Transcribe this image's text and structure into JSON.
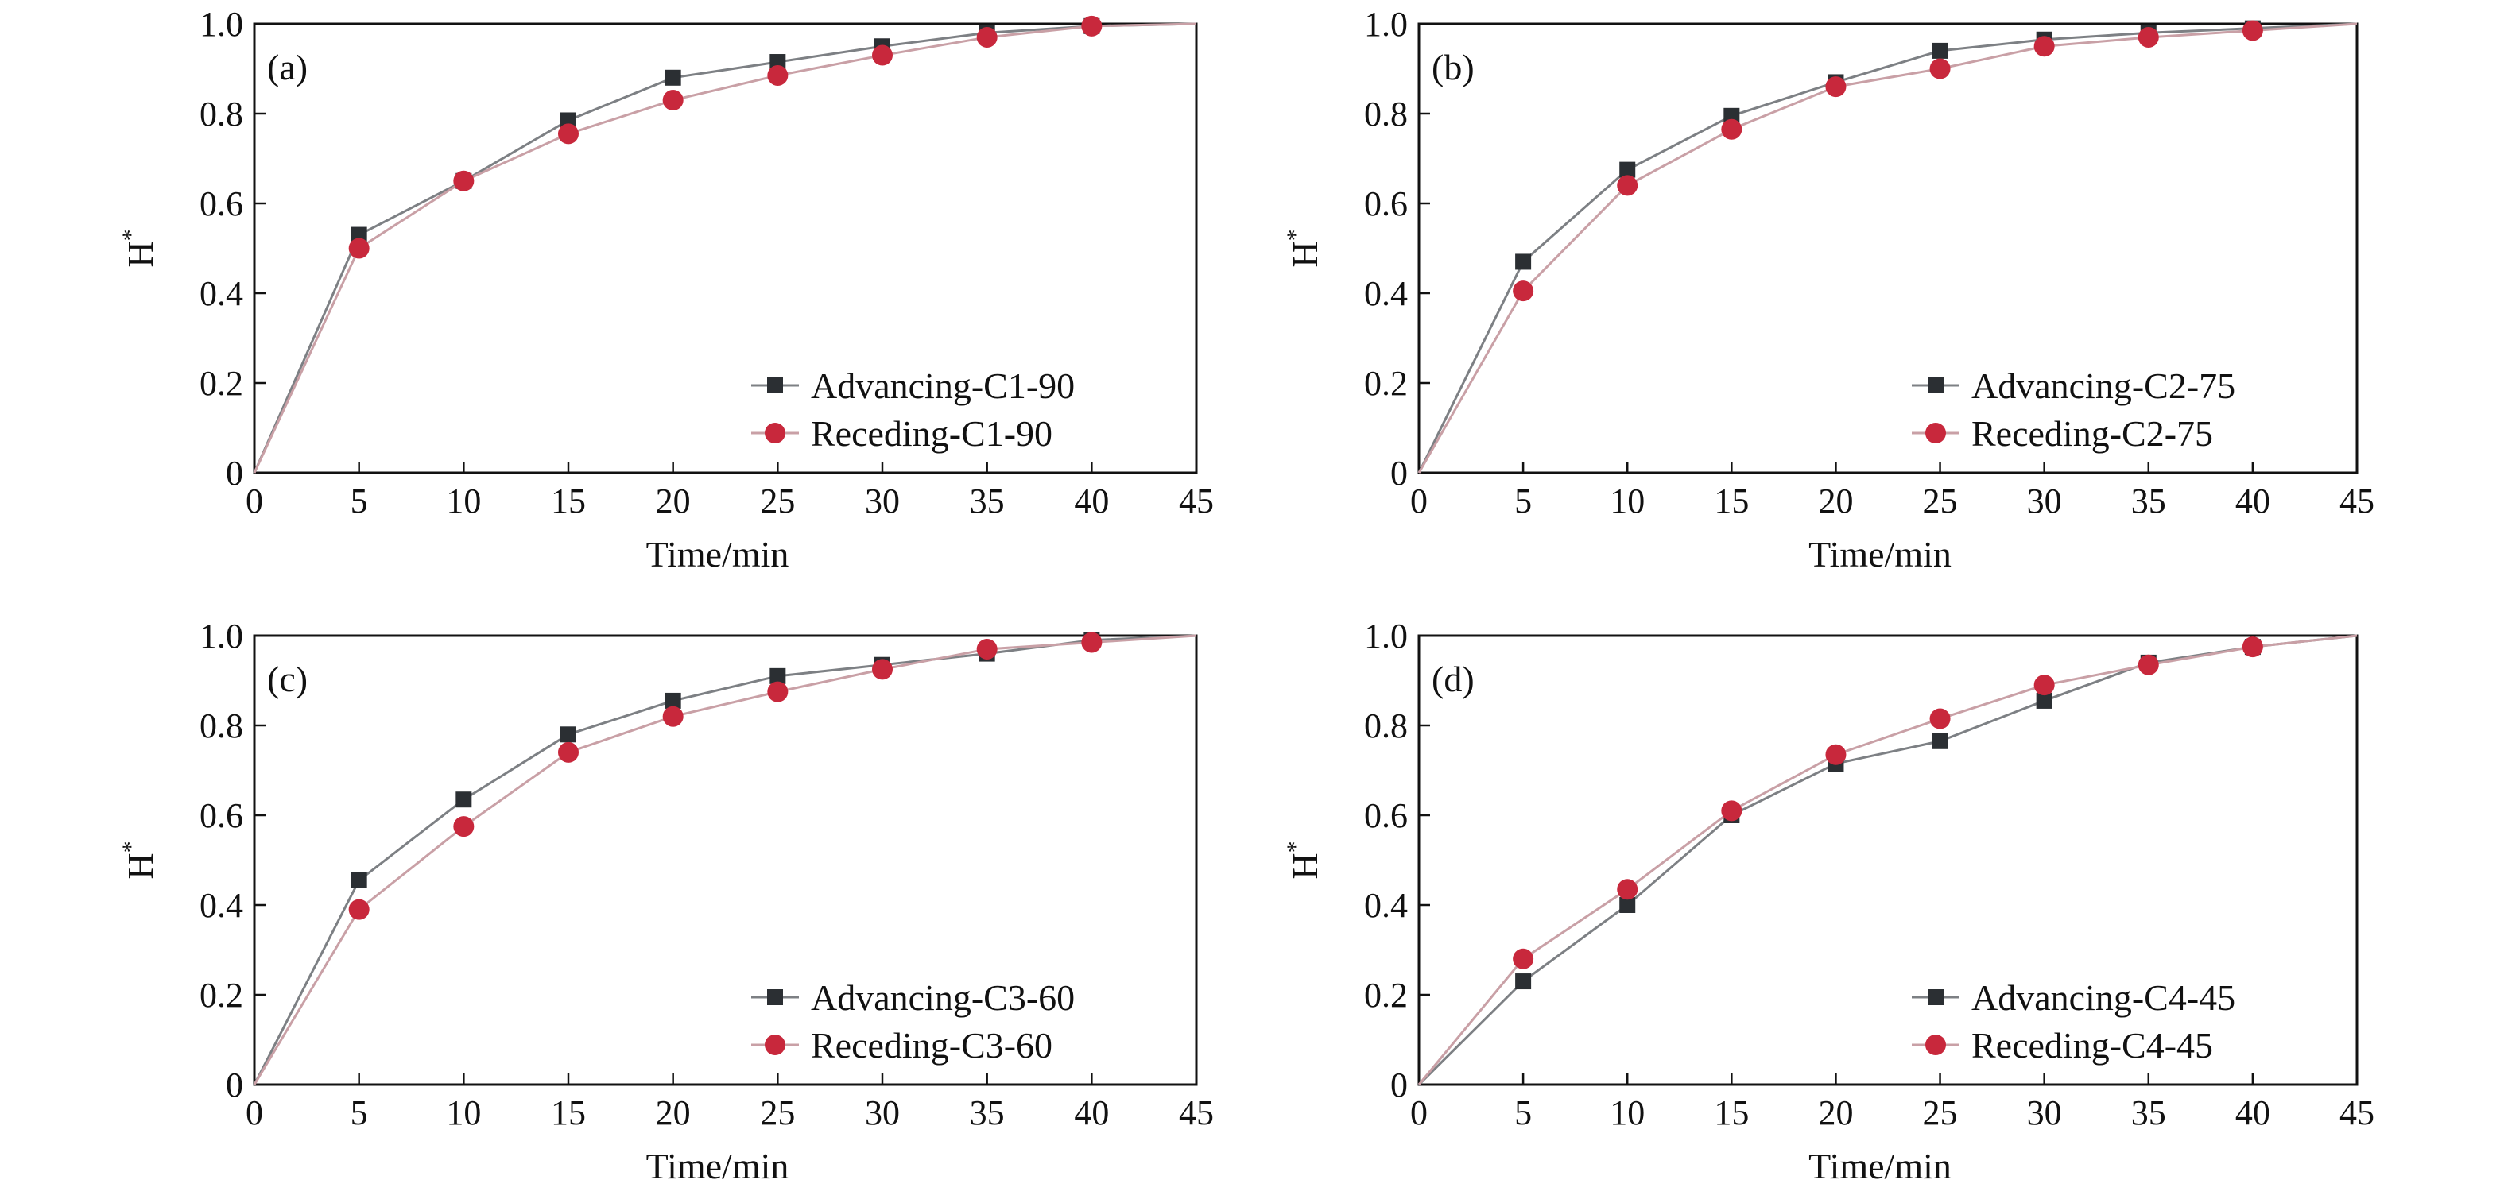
{
  "chart_data": [
    {
      "type": "line",
      "panel_label": "(a)",
      "xlabel": "Time/min",
      "ylabel": "H",
      "ylabel_superscript": "*",
      "xlim": [
        0,
        45
      ],
      "ylim": [
        0,
        1.0
      ],
      "xticks": [
        "0",
        "5",
        "10",
        "15",
        "20",
        "25",
        "30",
        "35",
        "40",
        "45"
      ],
      "yticks": [
        "0",
        "0.2",
        "0.4",
        "0.6",
        "0.8",
        "1.0"
      ],
      "legend_position": "bottom-right",
      "x": [
        0,
        5,
        10,
        15,
        20,
        25,
        30,
        35,
        40,
        45
      ],
      "series": [
        {
          "name": "Advancing-C1-90",
          "marker": "square",
          "color": "#2b2f33",
          "values": [
            0,
            0.53,
            0.65,
            0.785,
            0.88,
            0.915,
            0.95,
            0.98,
            0.995,
            1.0
          ]
        },
        {
          "name": "Receding-C1-90",
          "marker": "circle",
          "color": "#c8283c",
          "values": [
            0,
            0.5,
            0.65,
            0.755,
            0.83,
            0.885,
            0.93,
            0.97,
            0.995,
            1.0
          ]
        }
      ]
    },
    {
      "type": "line",
      "panel_label": "(b)",
      "xlabel": "Time/min",
      "ylabel": "H",
      "ylabel_superscript": "*",
      "xlim": [
        0,
        45
      ],
      "ylim": [
        0,
        1.0
      ],
      "xticks": [
        "0",
        "5",
        "10",
        "15",
        "20",
        "25",
        "30",
        "35",
        "40",
        "45"
      ],
      "yticks": [
        "0",
        "0.2",
        "0.4",
        "0.6",
        "0.8",
        "1.0"
      ],
      "legend_position": "bottom-right",
      "x": [
        0,
        5,
        10,
        15,
        20,
        25,
        30,
        35,
        40,
        45
      ],
      "series": [
        {
          "name": "Advancing-C2-75",
          "marker": "square",
          "color": "#2b2f33",
          "values": [
            0,
            0.47,
            0.675,
            0.795,
            0.87,
            0.94,
            0.965,
            0.98,
            0.99,
            1.0
          ]
        },
        {
          "name": "Receding-C2-75",
          "marker": "circle",
          "color": "#c8283c",
          "values": [
            0,
            0.405,
            0.64,
            0.765,
            0.86,
            0.9,
            0.95,
            0.97,
            0.985,
            1.0
          ]
        }
      ]
    },
    {
      "type": "line",
      "panel_label": "(c)",
      "xlabel": "Time/min",
      "ylabel": "H",
      "ylabel_superscript": "*",
      "xlim": [
        0,
        45
      ],
      "ylim": [
        0,
        1.0
      ],
      "xticks": [
        "0",
        "5",
        "10",
        "15",
        "20",
        "25",
        "30",
        "35",
        "40",
        "45"
      ],
      "yticks": [
        "0",
        "0.2",
        "0.4",
        "0.6",
        "0.8",
        "1.0"
      ],
      "legend_position": "bottom-right",
      "x": [
        0,
        5,
        10,
        15,
        20,
        25,
        30,
        35,
        40,
        45
      ],
      "series": [
        {
          "name": "Advancing-C3-60",
          "marker": "square",
          "color": "#2b2f33",
          "values": [
            0,
            0.455,
            0.635,
            0.78,
            0.855,
            0.91,
            0.935,
            0.96,
            0.99,
            1.0
          ]
        },
        {
          "name": "Receding-C3-60",
          "marker": "circle",
          "color": "#c8283c",
          "values": [
            0,
            0.39,
            0.575,
            0.74,
            0.82,
            0.875,
            0.925,
            0.97,
            0.985,
            1.0
          ]
        }
      ]
    },
    {
      "type": "line",
      "panel_label": "(d)",
      "xlabel": "Time/min",
      "ylabel": "H",
      "ylabel_superscript": "*",
      "xlim": [
        0,
        45
      ],
      "ylim": [
        0,
        1.0
      ],
      "xticks": [
        "0",
        "5",
        "10",
        "15",
        "20",
        "25",
        "30",
        "35",
        "40",
        "45"
      ],
      "yticks": [
        "0",
        "0.2",
        "0.4",
        "0.6",
        "0.8",
        "1.0"
      ],
      "legend_position": "bottom-right",
      "x": [
        0,
        5,
        10,
        15,
        20,
        25,
        30,
        35,
        40,
        45
      ],
      "series": [
        {
          "name": "Advancing-C4-45",
          "marker": "square",
          "color": "#2b2f33",
          "values": [
            0,
            0.23,
            0.4,
            0.6,
            0.715,
            0.765,
            0.855,
            0.94,
            0.975,
            1.0
          ]
        },
        {
          "name": "Receding-C4-45",
          "marker": "circle",
          "color": "#c8283c",
          "values": [
            0,
            0.28,
            0.435,
            0.61,
            0.735,
            0.815,
            0.89,
            0.935,
            0.975,
            1.0
          ]
        }
      ]
    }
  ]
}
